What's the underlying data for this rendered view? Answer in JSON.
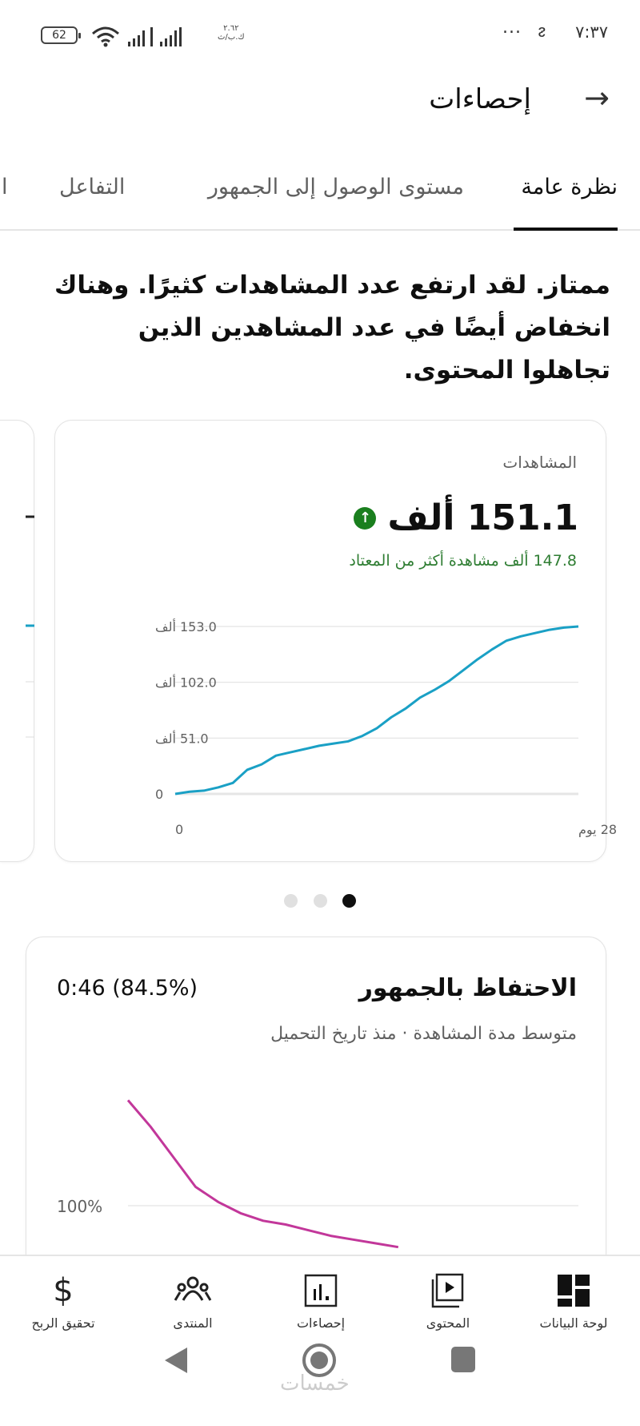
{
  "status_bar": {
    "time": "٧:٣٧",
    "battery": "62",
    "speed_value": "٢.٦٢",
    "speed_unit": "ك.ب/ث",
    "more": "..."
  },
  "header": {
    "title": "إحصاءات",
    "back_icon": "arrow-back-icon"
  },
  "tabs": [
    {
      "label": "نظرة عامة",
      "active": true
    },
    {
      "label": "مستوى الوصول إلى الجمهور"
    },
    {
      "label": "التفاعل"
    },
    {
      "label": "ا"
    }
  ],
  "summary": {
    "lines": [
      "ممتاز. لقد ارتفع عدد المشاهدات كثيرًا. وهناك",
      "انخفاض أيضًا في عدد المشاهدين الذين",
      "تجاهلوا المحتوى."
    ]
  },
  "views_card": {
    "label": "المشاهدات",
    "value": "151.1 ألف",
    "trend": "up",
    "delta": "147.8 ألف مشاهدة أكثر من المعتاد"
  },
  "carousel": {
    "count": 3,
    "active_index": 2
  },
  "colors": {
    "views_line": "#1aa0c5",
    "retention_line": "#c2379a",
    "positive": "#2e7d32",
    "up_badge": "#1a7f1e"
  },
  "chart_data": [
    {
      "type": "line",
      "title": "المشاهدات",
      "ylim": [
        0,
        153
      ],
      "yticks": [
        "0",
        "51.0 ألف",
        "102.0 ألف",
        "153.0 ألف"
      ],
      "ytick_values": [
        0,
        51,
        102,
        153
      ],
      "xticks": [
        "0",
        "28 يوم"
      ],
      "xlim": [
        0,
        28
      ],
      "grid": true,
      "x": [
        0,
        1,
        2,
        3,
        4,
        5,
        6,
        7,
        8,
        9,
        10,
        11,
        12,
        13,
        14,
        15,
        16,
        17,
        18,
        19,
        20,
        21,
        22,
        23,
        24,
        25,
        26,
        27,
        28
      ],
      "y": [
        0,
        2,
        3,
        6,
        10,
        22,
        27,
        35,
        38,
        41,
        44,
        46,
        48,
        53,
        60,
        70,
        78,
        88,
        95,
        103,
        113,
        123,
        132,
        140,
        144,
        147,
        150,
        152,
        153
      ]
    },
    {
      "type": "line",
      "title": "الاحتفاظ بالجمهور",
      "yticks": [
        "100%"
      ],
      "ytick_values": [
        100
      ],
      "grid": true,
      "x": [
        0,
        5,
        10,
        15,
        20,
        25,
        30,
        35,
        40,
        45,
        50,
        55,
        60
      ],
      "y": [
        128,
        121,
        113,
        105,
        101,
        98,
        96,
        95,
        93.5,
        92,
        91,
        90,
        89
      ]
    }
  ],
  "retention_card": {
    "title": "الاحتفاظ بالجمهور",
    "stat": "0:46 (84.5%)",
    "subtitle": "متوسط مدة المشاهدة · منذ تاريخ التحميل"
  },
  "bottom_nav": [
    {
      "label": "لوحة البيانات",
      "icon": "dashboard-icon"
    },
    {
      "label": "المحتوى",
      "icon": "content-icon"
    },
    {
      "label": "إحصاءات",
      "icon": "analytics-icon"
    },
    {
      "label": "المنتدى",
      "icon": "community-icon"
    },
    {
      "label": "تحقيق الربح",
      "icon": "dollar-icon"
    }
  ],
  "watermark": "خمسات"
}
